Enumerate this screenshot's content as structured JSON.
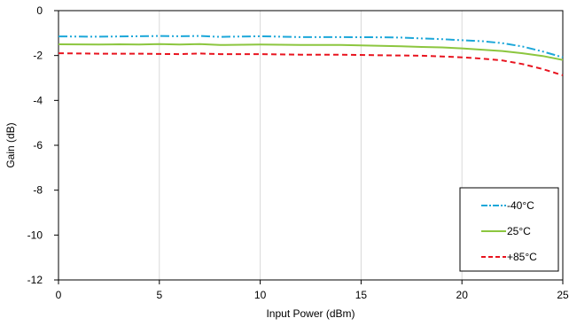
{
  "chart_data": {
    "type": "line",
    "title": "",
    "xlabel": "Input Power (dBm)",
    "ylabel": "Gain (dB)",
    "xlim": [
      0,
      25
    ],
    "ylim": [
      -12,
      0
    ],
    "x_ticks": [
      0,
      5,
      10,
      15,
      20,
      25
    ],
    "x_tick_labels": [
      "0",
      "5",
      "10",
      "15",
      "20",
      "25"
    ],
    "y_ticks": [
      0,
      -2,
      -4,
      -6,
      -8,
      -10,
      -12
    ],
    "y_tick_labels": [
      "0",
      "-2",
      "-4",
      "-6",
      "-8",
      "-10",
      "-12"
    ],
    "grid": "vertical",
    "legend_position": "bottom-right",
    "series": [
      {
        "name": "-40°C",
        "color": "#1ca7d9",
        "dash": "dash-dot-dot",
        "x": [
          0,
          2,
          4,
          5,
          6,
          7,
          8,
          10,
          12,
          14,
          16,
          17,
          18,
          19,
          20,
          21,
          22,
          23,
          24,
          25
        ],
        "y": [
          -1.15,
          -1.16,
          -1.14,
          -1.13,
          -1.14,
          -1.13,
          -1.17,
          -1.14,
          -1.18,
          -1.18,
          -1.19,
          -1.2,
          -1.24,
          -1.27,
          -1.32,
          -1.36,
          -1.45,
          -1.6,
          -1.82,
          -2.08
        ]
      },
      {
        "name": "25°C",
        "color": "#8cc63f",
        "dash": "solid",
        "x": [
          0,
          2,
          3,
          4,
          5,
          6,
          7,
          8,
          10,
          12,
          14,
          16,
          17,
          18,
          19,
          20,
          21,
          22,
          23,
          24,
          25
        ],
        "y": [
          -1.5,
          -1.51,
          -1.5,
          -1.51,
          -1.49,
          -1.51,
          -1.49,
          -1.53,
          -1.51,
          -1.53,
          -1.53,
          -1.57,
          -1.59,
          -1.62,
          -1.64,
          -1.68,
          -1.74,
          -1.8,
          -1.9,
          -2.02,
          -2.2
        ]
      },
      {
        "name": "+85°C",
        "color": "#e8141f",
        "dash": "dashed",
        "x": [
          0,
          2,
          4,
          5,
          6,
          7,
          8,
          10,
          12,
          14,
          16,
          18,
          19,
          20,
          21,
          22,
          23,
          24,
          25
        ],
        "y": [
          -1.9,
          -1.92,
          -1.92,
          -1.93,
          -1.94,
          -1.91,
          -1.94,
          -1.94,
          -1.96,
          -1.96,
          -1.99,
          -2.01,
          -2.04,
          -2.08,
          -2.14,
          -2.22,
          -2.38,
          -2.6,
          -2.88
        ]
      }
    ]
  }
}
